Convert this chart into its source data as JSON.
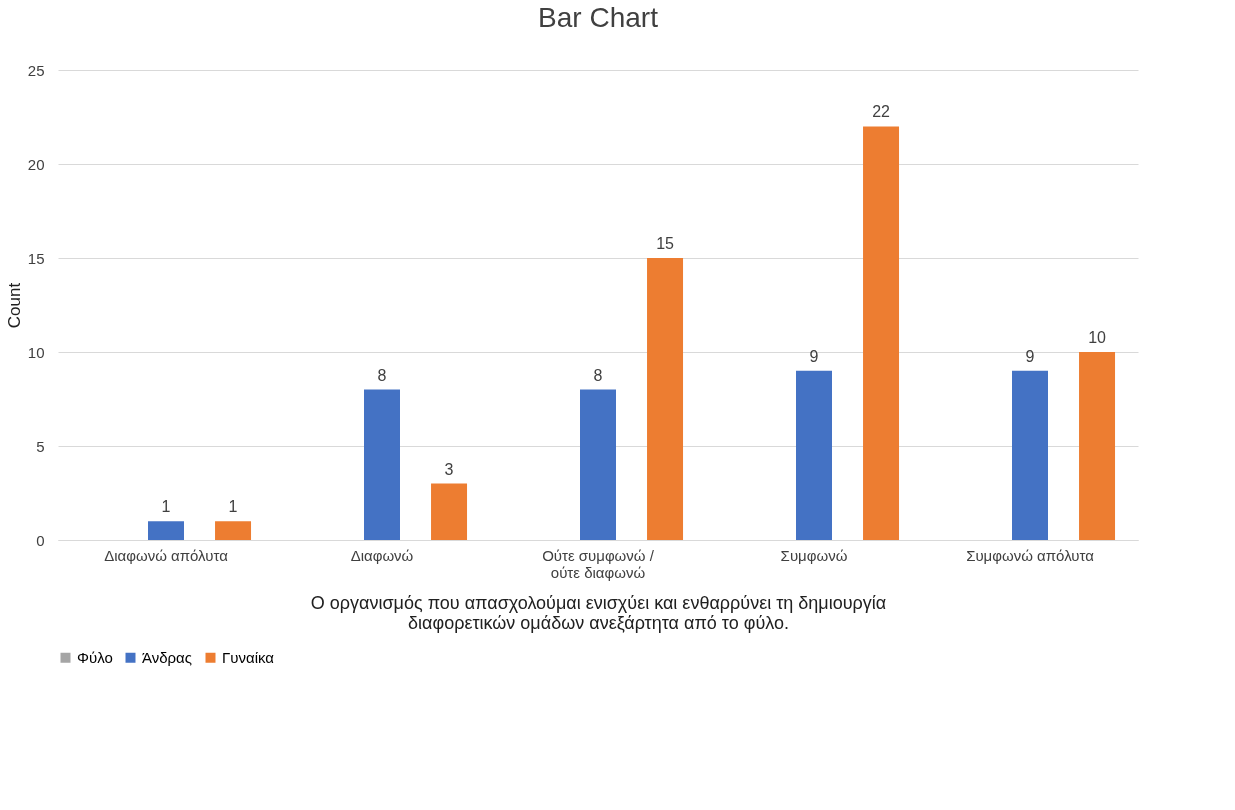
{
  "chart_data": {
    "type": "bar",
    "title": "Bar Chart",
    "xlabel": "Ο οργανισμός που απασχολούμαι ενισχύει και ενθαρρύνει τη δημιουργία διαφορετικών ομάδων ανεξάρτητα από το φύλο.",
    "ylabel": "Count",
    "categories": [
      "Διαφωνώ απόλυτα",
      "Διαφωνώ",
      "Ούτε συμφωνώ / ούτε διαφωνώ",
      "Συμφωνώ",
      "Συμφωνώ απόλυτα"
    ],
    "series": [
      {
        "name": "Φύλο",
        "color": "#a5a5a5",
        "values": [
          null,
          null,
          null,
          null,
          null
        ]
      },
      {
        "name": "Άνδρας",
        "color": "#4472c4",
        "values": [
          1,
          8,
          8,
          9,
          9
        ]
      },
      {
        "name": "Γυναίκα",
        "color": "#ed7d31",
        "values": [
          1,
          3,
          15,
          22,
          10
        ]
      }
    ],
    "ylim": [
      0,
      25
    ],
    "yticks": [
      0,
      5,
      10,
      15,
      20,
      25
    ],
    "grid": "y",
    "legend": "bottom",
    "data_labels": true
  }
}
